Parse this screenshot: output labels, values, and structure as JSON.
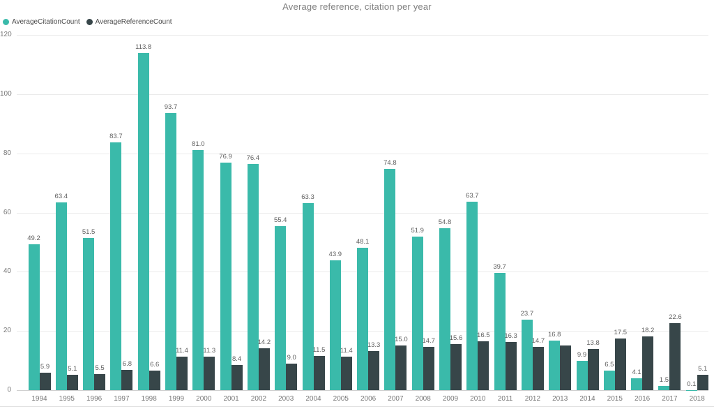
{
  "page": {
    "background": "#ffffff",
    "bottom_border_color": "#e2e2e2"
  },
  "chart_data": {
    "type": "bar",
    "title": "Average reference, citation per year",
    "title_color": "#7f7f7f",
    "categories": [
      "1994",
      "1995",
      "1996",
      "1997",
      "1998",
      "1999",
      "2000",
      "2001",
      "2002",
      "2003",
      "2004",
      "2005",
      "2006",
      "2007",
      "2008",
      "2009",
      "2010",
      "2011",
      "2012",
      "2013",
      "2014",
      "2015",
      "2016",
      "2017",
      "2018"
    ],
    "series": [
      {
        "name": "AverageCitationCount",
        "color": "#3abaaa",
        "values": [
          49.2,
          63.4,
          51.5,
          83.7,
          113.8,
          93.7,
          81.0,
          76.9,
          76.4,
          55.4,
          63.3,
          43.9,
          48.1,
          74.8,
          51.9,
          54.8,
          63.7,
          39.7,
          23.7,
          16.8,
          9.9,
          6.5,
          4.1,
          1.5,
          0.1
        ],
        "labels": [
          "49.2",
          "63.4",
          "51.5",
          "83.7",
          "113.8",
          "93.7",
          "81.0",
          "76.9",
          "76.4",
          "55.4",
          "63.3",
          "43.9",
          "48.1",
          "74.8",
          "51.9",
          "54.8",
          "63.7",
          "39.7",
          "23.7",
          "16.8",
          "9.9",
          "6.5",
          "4.1",
          "1.5",
          "0.1"
        ]
      },
      {
        "name": "AverageReferenceCount",
        "color": "#374649",
        "values": [
          5.9,
          5.1,
          5.5,
          6.8,
          6.6,
          11.4,
          11.3,
          8.4,
          14.2,
          9.0,
          11.5,
          11.4,
          13.3,
          15.0,
          14.7,
          15.6,
          16.5,
          16.3,
          14.7,
          15.0,
          13.8,
          17.5,
          18.2,
          22.6,
          5.1
        ],
        "labels": [
          "5.9",
          "5.1",
          "5.5",
          "6.8",
          "6.6",
          "11.4",
          "11.3",
          "8.4",
          "14.2",
          "9.0",
          "11.5",
          "11.4",
          "13.3",
          "15.0",
          "14.7",
          "15.6",
          "16.5",
          "16.3",
          "14.7",
          "",
          "13.8",
          "17.5",
          "18.2",
          "22.6",
          "5.1"
        ]
      }
    ],
    "ylim": [
      0,
      120
    ],
    "yticks": [
      0,
      20,
      40,
      60,
      80,
      100,
      120
    ],
    "grid": true,
    "legend_position": "top-left",
    "axis_label_color": "#777777",
    "data_label_color": "#5f5f5f",
    "gridline_color": "#ebebeb",
    "zero_line_color": "#d0d0d0"
  }
}
